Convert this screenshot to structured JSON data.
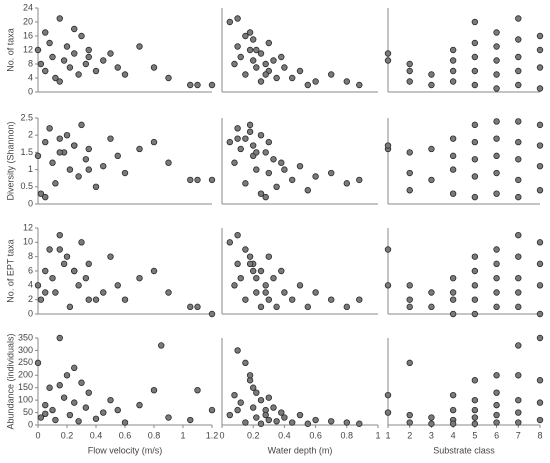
{
  "chart_data": [
    {
      "type": "scatter",
      "ylabel": "No. of taxa",
      "xlim": [
        0,
        1.2
      ],
      "ylim": [
        0,
        24
      ],
      "yticks": [
        0,
        4,
        8,
        12,
        16,
        20,
        24
      ],
      "x": [
        0,
        0.02,
        0.05,
        0.08,
        0.1,
        0.12,
        0.15,
        0.18,
        0.2,
        0.22,
        0.25,
        0.28,
        0.3,
        0.33,
        0.35,
        0.4,
        0.45,
        0.5,
        0.55,
        0.6,
        0.7,
        0.8,
        0.9,
        1.05,
        1.1,
        1.2,
        0.15,
        0.05,
        0.25,
        0.35
      ],
      "y": [
        12,
        8,
        6,
        14,
        10,
        4,
        21,
        9,
        13,
        7,
        11,
        5,
        16,
        8,
        12,
        6,
        9,
        11,
        7,
        5,
        13,
        7,
        4,
        2,
        2,
        2,
        3,
        17,
        18,
        10
      ]
    },
    {
      "type": "scatter",
      "xlim": [
        0,
        1
      ],
      "ylim": [
        0,
        24
      ],
      "x": [
        0.05,
        0.08,
        0.1,
        0.12,
        0.15,
        0.15,
        0.18,
        0.2,
        0.2,
        0.22,
        0.25,
        0.25,
        0.28,
        0.3,
        0.3,
        0.33,
        0.35,
        0.38,
        0.4,
        0.45,
        0.5,
        0.55,
        0.6,
        0.7,
        0.8,
        0.88,
        0.1,
        0.18,
        0.22,
        0.28
      ],
      "y": [
        20,
        8,
        13,
        10,
        16,
        5,
        12,
        9,
        15,
        7,
        11,
        3,
        8,
        14,
        6,
        9,
        4,
        10,
        7,
        4,
        6,
        2,
        3,
        5,
        3,
        2,
        21,
        17,
        12,
        5
      ]
    },
    {
      "type": "scatter",
      "xlim": [
        1,
        8
      ],
      "ylim": [
        0,
        24
      ],
      "x": [
        1,
        1,
        2,
        2,
        2,
        3,
        3,
        4,
        4,
        4,
        4,
        5,
        5,
        5,
        5,
        5,
        6,
        6,
        6,
        6,
        6,
        7,
        7,
        7,
        7,
        7,
        8,
        8,
        8,
        8
      ],
      "y": [
        11,
        9,
        8,
        6,
        3,
        5,
        2,
        12,
        9,
        6,
        3,
        20,
        14,
        10,
        6,
        2,
        17,
        13,
        9,
        5,
        1,
        21,
        15,
        10,
        6,
        2,
        16,
        12,
        7,
        1
      ]
    },
    {
      "type": "scatter",
      "ylabel": "Diversity (Shannon)",
      "xlim": [
        0,
        1.2
      ],
      "ylim": [
        0,
        2.5
      ],
      "yticks": [
        0,
        0.5,
        1,
        1.5,
        2,
        2.5
      ],
      "x": [
        0,
        0.02,
        0.05,
        0.08,
        0.1,
        0.12,
        0.15,
        0.18,
        0.2,
        0.22,
        0.25,
        0.28,
        0.3,
        0.33,
        0.35,
        0.4,
        0.45,
        0.5,
        0.55,
        0.6,
        0.7,
        0.8,
        0.9,
        1.05,
        1.1,
        1.2,
        0.15,
        0.05,
        0.25,
        0.35
      ],
      "y": [
        1.4,
        0.3,
        1.8,
        2.2,
        1.2,
        0.6,
        1.9,
        1.5,
        2.0,
        1.0,
        1.7,
        0.8,
        2.3,
        1.3,
        1.6,
        0.5,
        1.1,
        1.9,
        1.4,
        0.9,
        1.6,
        1.8,
        1.2,
        0.7,
        0.7,
        0.7,
        1.5,
        0.2,
        1.7,
        1.0
      ]
    },
    {
      "type": "scatter",
      "xlim": [
        0,
        1
      ],
      "ylim": [
        0,
        2.5
      ],
      "x": [
        0.05,
        0.08,
        0.1,
        0.12,
        0.15,
        0.15,
        0.18,
        0.2,
        0.2,
        0.22,
        0.25,
        0.25,
        0.28,
        0.3,
        0.3,
        0.33,
        0.35,
        0.38,
        0.4,
        0.45,
        0.5,
        0.55,
        0.6,
        0.7,
        0.8,
        0.88,
        0.1,
        0.18,
        0.22,
        0.28
      ],
      "y": [
        1.8,
        1.2,
        2.2,
        1.6,
        1.9,
        0.6,
        2.3,
        1.4,
        1.7,
        1.0,
        2.0,
        0.3,
        1.5,
        1.8,
        0.9,
        1.3,
        0.5,
        1.2,
        1.0,
        0.7,
        1.1,
        0.4,
        0.8,
        0.9,
        0.6,
        0.7,
        1.9,
        2.1,
        1.5,
        0.2
      ]
    },
    {
      "type": "scatter",
      "xlim": [
        1,
        8
      ],
      "ylim": [
        0,
        2.5
      ],
      "x": [
        1,
        1,
        2,
        2,
        2,
        3,
        3,
        4,
        4,
        4,
        4,
        5,
        5,
        5,
        5,
        5,
        6,
        6,
        6,
        6,
        6,
        7,
        7,
        7,
        7,
        7,
        8,
        8,
        8,
        8
      ],
      "y": [
        1.6,
        1.7,
        1.5,
        0.9,
        0.4,
        1.6,
        0.7,
        1.9,
        1.4,
        1.0,
        0.3,
        2.3,
        1.8,
        1.3,
        0.8,
        0.2,
        2.4,
        1.9,
        1.4,
        0.9,
        0.3,
        2.4,
        1.8,
        1.3,
        0.7,
        0.2,
        2.3,
        1.7,
        1.1,
        0.4
      ]
    },
    {
      "type": "scatter",
      "ylabel": "No. of EPT taxa",
      "xlim": [
        0,
        1.2
      ],
      "ylim": [
        0,
        12
      ],
      "yticks": [
        0,
        2,
        4,
        6,
        8,
        10,
        12
      ],
      "x": [
        0,
        0.02,
        0.05,
        0.08,
        0.1,
        0.12,
        0.15,
        0.18,
        0.2,
        0.22,
        0.25,
        0.28,
        0.3,
        0.33,
        0.35,
        0.4,
        0.45,
        0.5,
        0.55,
        0.6,
        0.7,
        0.8,
        0.9,
        1.05,
        1.1,
        1.2,
        0.15,
        0.05,
        0.25,
        0.35
      ],
      "y": [
        4,
        2,
        6,
        9,
        5,
        3,
        11,
        7,
        8,
        1,
        6,
        4,
        10,
        5,
        7,
        2,
        3,
        8,
        4,
        2,
        5,
        6,
        3,
        1,
        1,
        0,
        9,
        3,
        6,
        2
      ]
    },
    {
      "type": "scatter",
      "xlim": [
        0,
        1
      ],
      "ylim": [
        0,
        12
      ],
      "x": [
        0.05,
        0.08,
        0.1,
        0.12,
        0.15,
        0.15,
        0.18,
        0.2,
        0.2,
        0.22,
        0.25,
        0.25,
        0.28,
        0.3,
        0.3,
        0.33,
        0.35,
        0.38,
        0.4,
        0.45,
        0.5,
        0.55,
        0.6,
        0.7,
        0.8,
        0.88,
        0.1,
        0.18,
        0.22,
        0.28
      ],
      "y": [
        10,
        4,
        7,
        5,
        9,
        2,
        8,
        6,
        7,
        3,
        6,
        1,
        4,
        8,
        2,
        5,
        1,
        6,
        3,
        2,
        4,
        1,
        3,
        2,
        1,
        2,
        11,
        7,
        5,
        3
      ]
    },
    {
      "type": "scatter",
      "xlim": [
        1,
        8
      ],
      "ylim": [
        0,
        12
      ],
      "x": [
        1,
        1,
        2,
        2,
        2,
        3,
        3,
        4,
        4,
        4,
        4,
        5,
        5,
        5,
        5,
        5,
        6,
        6,
        6,
        6,
        6,
        7,
        7,
        7,
        7,
        7,
        8,
        8,
        8,
        8
      ],
      "y": [
        9,
        4,
        4,
        2,
        1,
        3,
        1,
        5,
        3,
        2,
        0,
        8,
        6,
        4,
        2,
        0,
        9,
        7,
        5,
        3,
        1,
        11,
        8,
        5,
        3,
        1,
        10,
        7,
        4,
        0
      ]
    },
    {
      "type": "scatter",
      "ylabel": "Abundance (individuals)",
      "xlabel": "Flow velocity (m/s)",
      "xlim": [
        0,
        1.2
      ],
      "ylim": [
        0,
        350
      ],
      "xticks": [
        0,
        0.2,
        0.4,
        0.6,
        0.8,
        1,
        1.2
      ],
      "yticks": [
        0,
        50,
        100,
        150,
        200,
        250,
        300,
        350
      ],
      "x": [
        0,
        0.02,
        0.05,
        0.08,
        0.1,
        0.12,
        0.15,
        0.18,
        0.2,
        0.22,
        0.25,
        0.28,
        0.3,
        0.33,
        0.35,
        0.4,
        0.45,
        0.5,
        0.55,
        0.6,
        0.7,
        0.8,
        0.9,
        1.05,
        1.1,
        1.2,
        0.15,
        0.05,
        0.25,
        0.85
      ],
      "y": [
        250,
        30,
        80,
        150,
        60,
        20,
        350,
        110,
        200,
        40,
        90,
        15,
        170,
        70,
        130,
        25,
        50,
        100,
        60,
        10,
        80,
        140,
        30,
        20,
        140,
        60,
        160,
        45,
        230,
        320
      ]
    },
    {
      "type": "scatter",
      "xlabel": "Water depth (m)",
      "xlim": [
        0,
        1
      ],
      "ylim": [
        0,
        350
      ],
      "xticks": [
        0,
        0.2,
        0.4,
        0.6,
        0.8,
        1
      ],
      "x": [
        0.05,
        0.08,
        0.1,
        0.12,
        0.15,
        0.15,
        0.18,
        0.2,
        0.2,
        0.22,
        0.25,
        0.25,
        0.28,
        0.3,
        0.3,
        0.33,
        0.35,
        0.38,
        0.4,
        0.45,
        0.5,
        0.55,
        0.6,
        0.7,
        0.8,
        0.88,
        0.1,
        0.18,
        0.22,
        0.28
      ],
      "y": [
        40,
        120,
        60,
        90,
        250,
        10,
        180,
        70,
        150,
        30,
        100,
        5,
        60,
        110,
        20,
        70,
        15,
        50,
        30,
        10,
        40,
        5,
        20,
        15,
        10,
        5,
        300,
        200,
        130,
        40
      ]
    },
    {
      "type": "scatter",
      "xlabel": "Substrate class",
      "xlim": [
        1,
        8
      ],
      "ylim": [
        0,
        350
      ],
      "xticks": [
        1,
        2,
        3,
        4,
        5,
        6,
        7,
        8
      ],
      "x": [
        1,
        1,
        2,
        2,
        2,
        3,
        3,
        4,
        4,
        4,
        4,
        5,
        5,
        5,
        5,
        5,
        6,
        6,
        6,
        6,
        6,
        7,
        7,
        7,
        7,
        7,
        8,
        8,
        8,
        8
      ],
      "y": [
        120,
        50,
        250,
        40,
        10,
        30,
        5,
        120,
        60,
        20,
        5,
        180,
        100,
        60,
        30,
        5,
        200,
        130,
        80,
        40,
        10,
        320,
        200,
        100,
        50,
        10,
        350,
        180,
        90,
        20
      ]
    }
  ]
}
